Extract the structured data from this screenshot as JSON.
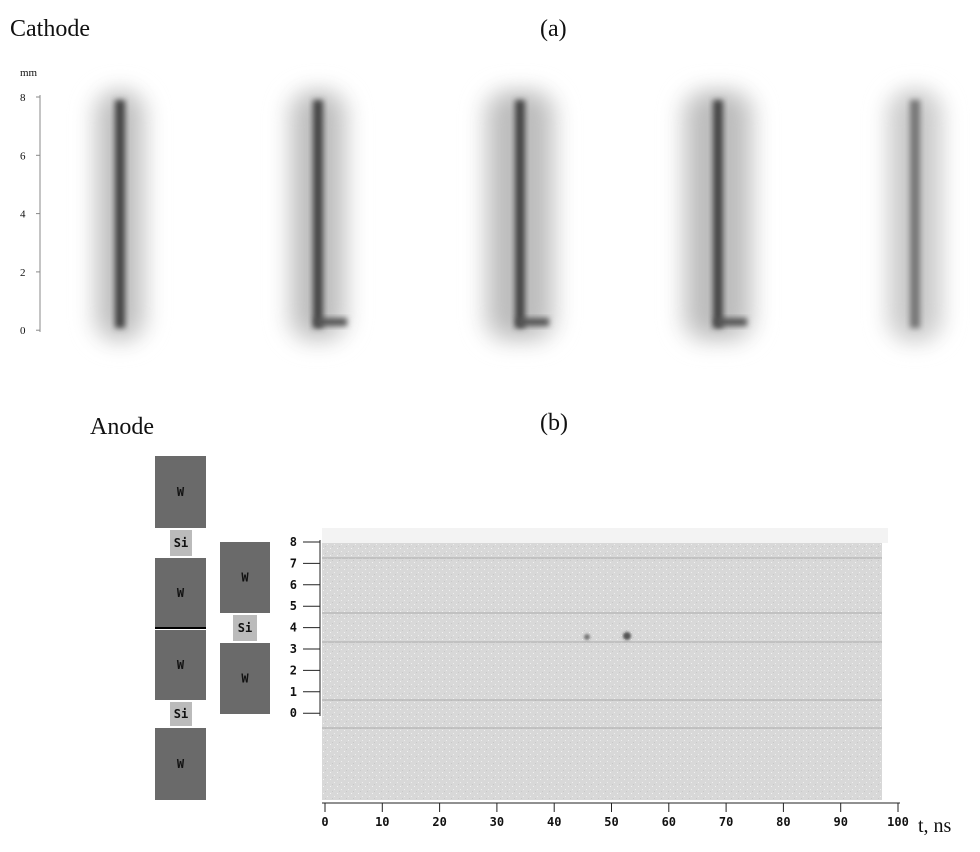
{
  "header": {
    "cathode": "Cathode",
    "panel_a": "(a)",
    "anode": "Anode",
    "panel_b": "(b)"
  },
  "cathode_axis": {
    "unit": "mm",
    "ticks": [
      "8",
      "6",
      "4",
      "2",
      "0"
    ]
  },
  "blocks": {
    "w": "W",
    "si": "Si"
  },
  "anode_plot": {
    "yticks": [
      "8",
      "7",
      "6",
      "5",
      "4",
      "3",
      "2",
      "1",
      "0"
    ],
    "xticks": [
      "0",
      "10",
      "20",
      "30",
      "40",
      "50",
      "60",
      "70",
      "80",
      "90",
      "100"
    ],
    "xlabel": "t, ns"
  }
}
